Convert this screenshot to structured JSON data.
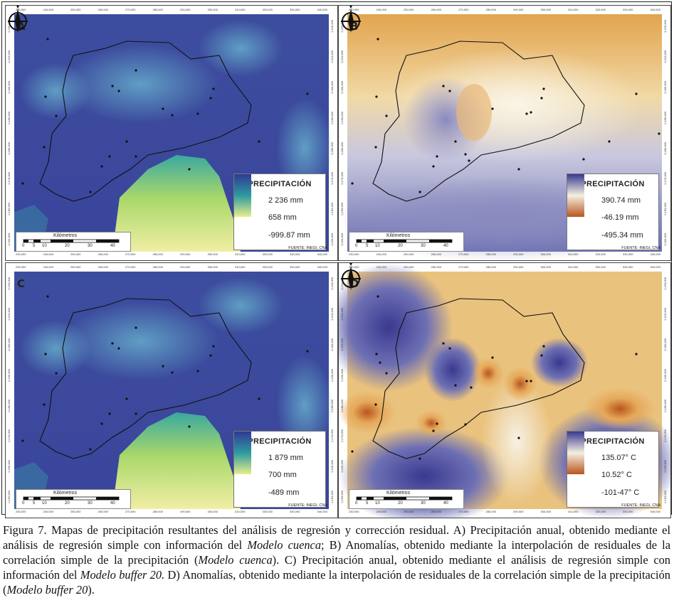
{
  "caption": {
    "figure_label": "Figura 7.",
    "p1": " Mapas de precipitación resultantes del análisis de regresión y corrección residual. A) Precipitación anual, obtenido mediante el análisis de regresión simple con información del ",
    "i1": "Modelo cuenca",
    "p2": "; B) Anomalías, obtenido mediante la interpolación de residuales de la correlación simple de la precipitación (",
    "i2": "Modelo cuenca",
    "p3": "). C) Precipitación anual, obtenido mediante el análisis de regresión simple con información del ",
    "i3": "Modelo buffer 20.",
    "p4": " D) Anomalías, obtenido mediante la interpolación de residuales de la correlación simple de la precipitación (",
    "i4": "Modelo buffer 20",
    "p5": ")."
  },
  "panels": [
    {
      "letter": "A",
      "legend": {
        "title": "PRECIPITACIÓN",
        "values": [
          "2 236  mm",
          "658  mm",
          "-999.87  mm"
        ],
        "colors": [
          "#2f3a93",
          "#2e9aa0",
          "#e8ef8a"
        ]
      },
      "scale": {
        "title": "Kilómetros",
        "ticks": [
          "0",
          "5",
          "10",
          "20",
          "30",
          "40"
        ]
      },
      "source": "FUENTE: INEGI, CNA",
      "style": "dem"
    },
    {
      "letter": "B",
      "legend": {
        "title": "PRECIPITACIÓN",
        "values": [
          "390.74  mm",
          "-46.19  mm",
          "-495.34  mm"
        ],
        "colors": [
          "#39398f",
          "#f4efe0",
          "#b8561f"
        ]
      },
      "scale": {
        "title": "Kilómetros",
        "ticks": [
          "0",
          "5",
          "10",
          "20",
          "30",
          "40"
        ]
      },
      "source": "FUENTE: INEGI, CNA",
      "style": "anom"
    },
    {
      "letter": "C",
      "legend": {
        "title": "PRECIPITACIÓN",
        "values": [
          "1 879  mm",
          "700  mm",
          "-489  mm"
        ],
        "colors": [
          "#2f3a93",
          "#2e9aa0",
          "#e8ef8a"
        ]
      },
      "scale": {
        "title": "Kilómetros",
        "ticks": [
          "0",
          "5",
          "10",
          "20",
          "30",
          "40"
        ]
      },
      "source": "FUENTE: INEGI, CNA",
      "style": "dem"
    },
    {
      "letter": "D",
      "legend": {
        "title": "PRECIPITACIÓN",
        "values": [
          "135.07°  C",
          "10.52°  C",
          "-101-47° C"
        ],
        "colors": [
          "#39398f",
          "#f4efe0",
          "#b8561f"
        ]
      },
      "scale": {
        "title": "Kilómetros",
        "ticks": [
          "0",
          "5",
          "10",
          "20",
          "30",
          "40"
        ]
      },
      "source": "FUENTE: INEGI, CNA",
      "style": "anom2"
    }
  ],
  "grid_ticks": {
    "top": [
      "230,000",
      "240,000",
      "250,000",
      "260,000",
      "270,000",
      "280,000",
      "290,000",
      "300,000",
      "310,000",
      "320,000",
      "330,000",
      "340,000",
      "350,000"
    ],
    "side": [
      "2,220,000",
      "2,210,000",
      "2,200,000",
      "2,190,000",
      "2,180,000",
      "2,170,000",
      "2,160,000",
      "2,150,000"
    ]
  }
}
